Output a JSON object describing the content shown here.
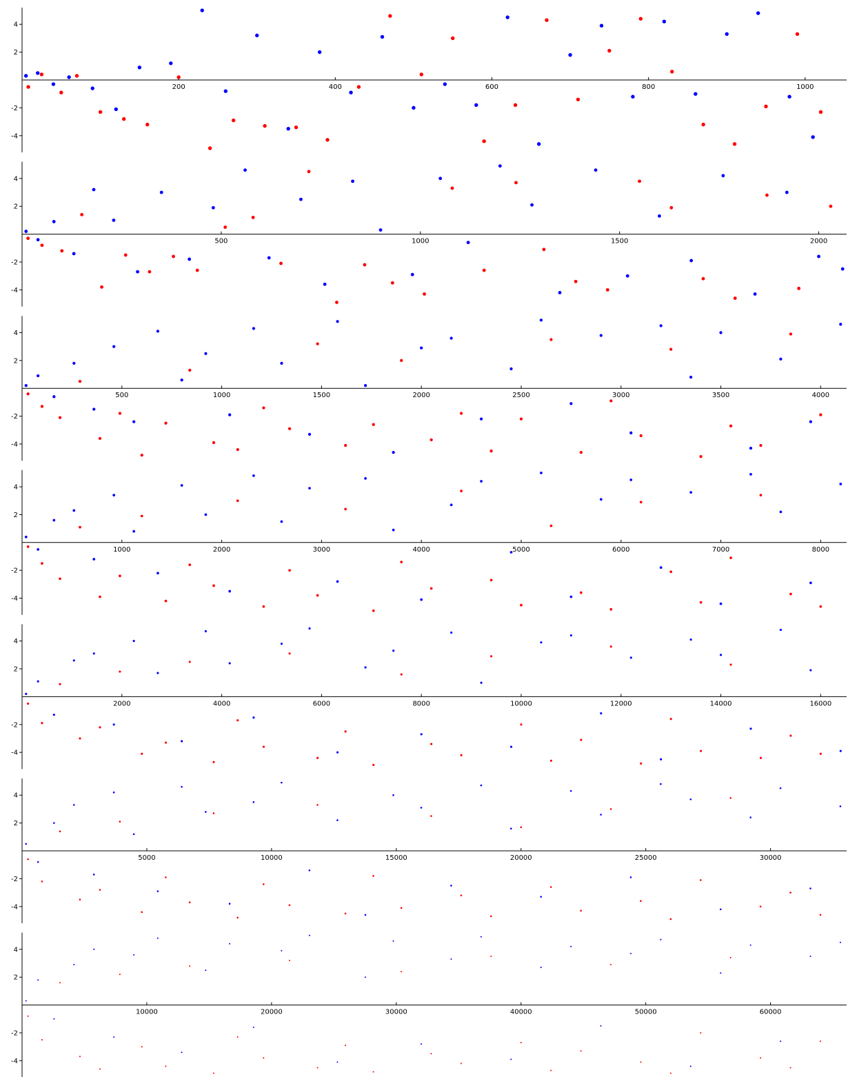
{
  "chart_data": [
    {
      "type": "scatter",
      "xlim": [
        0,
        1053
      ],
      "ylim": [
        -5.2,
        5.2
      ],
      "xticks": [
        200,
        400,
        600,
        800,
        1000
      ],
      "yticks": [
        -4,
        -2,
        2,
        4
      ],
      "series": [
        {
          "color": "#0000ff",
          "x": [
            5,
            20,
            40,
            60,
            90,
            120,
            150,
            190,
            230,
            260,
            300,
            340,
            380,
            420,
            460,
            500,
            540,
            580,
            620,
            660,
            700,
            740,
            780,
            820,
            860,
            900,
            940,
            980,
            1010
          ],
          "values": [
            0.3,
            0.5,
            -0.3,
            0.2,
            -0.6,
            -2.1,
            0.9,
            1.2,
            5.0,
            -0.8,
            3.2,
            -3.5,
            2.0,
            -0.9,
            3.1,
            -2.0,
            -0.3,
            -1.8,
            4.5,
            -4.6,
            1.8,
            3.9,
            -1.2,
            4.2,
            -1.0,
            3.3,
            4.8,
            -1.2,
            -4.1
          ]
        },
        {
          "color": "#ff0000",
          "x": [
            8,
            25,
            50,
            70,
            100,
            130,
            160,
            200,
            240,
            270,
            310,
            350,
            390,
            430,
            470,
            510,
            550,
            590,
            630,
            670,
            710,
            750,
            790,
            830,
            870,
            910,
            950,
            990,
            1020
          ],
          "values": [
            -0.5,
            0.4,
            -0.9,
            0.3,
            -2.3,
            -2.8,
            -3.2,
            0.2,
            -4.9,
            -2.9,
            -3.3,
            -3.4,
            -4.3,
            -0.5,
            4.6,
            0.4,
            3.0,
            -4.4,
            -1.8,
            4.3,
            -1.4,
            2.1,
            4.4,
            0.6,
            -3.2,
            -4.6,
            -1.9,
            3.3,
            -2.3
          ]
        }
      ]
    },
    {
      "type": "scatter",
      "xlim": [
        0,
        2070
      ],
      "ylim": [
        -5.2,
        5.2
      ],
      "xticks": [
        500,
        1000,
        1500,
        2000
      ],
      "yticks": [
        -4,
        -2,
        2,
        4
      ],
      "series": [
        {
          "color": "#0000ff",
          "x": [
            10,
            40,
            80,
            130,
            180,
            230,
            290,
            350,
            420,
            480,
            560,
            620,
            700,
            760,
            830,
            900,
            980,
            1050,
            1120,
            1200,
            1280,
            1350,
            1440,
            1520,
            1600,
            1680,
            1760,
            1840,
            1920,
            2000,
            2060
          ],
          "values": [
            0.2,
            -0.4,
            0.9,
            -1.4,
            3.2,
            1.0,
            -2.7,
            3.0,
            -1.8,
            1.9,
            4.6,
            -1.7,
            2.5,
            -3.6,
            3.8,
            0.3,
            -2.9,
            4.0,
            -0.6,
            4.9,
            2.1,
            -4.2,
            4.6,
            -3.0,
            1.3,
            -1.9,
            4.2,
            -4.3,
            3.0,
            -1.6,
            -2.5
          ]
        },
        {
          "color": "#ff0000",
          "x": [
            15,
            50,
            100,
            150,
            200,
            260,
            320,
            380,
            440,
            510,
            580,
            650,
            720,
            790,
            860,
            930,
            1010,
            1080,
            1160,
            1240,
            1310,
            1390,
            1470,
            1550,
            1630,
            1710,
            1790,
            1870,
            1950,
            2030
          ],
          "values": [
            -0.3,
            -0.8,
            -1.2,
            1.4,
            -3.8,
            -1.5,
            -2.7,
            -1.6,
            -2.6,
            0.5,
            1.2,
            -2.1,
            4.5,
            -4.9,
            -2.2,
            -3.5,
            -4.3,
            3.3,
            -2.6,
            3.7,
            -1.1,
            -3.4,
            -4.0,
            3.8,
            1.9,
            -3.2,
            -4.6,
            2.8,
            -3.9,
            2.0
          ]
        }
      ]
    },
    {
      "type": "scatter",
      "xlim": [
        0,
        4130
      ],
      "ylim": [
        -5.2,
        5.2
      ],
      "xticks": [
        500,
        1000,
        1500,
        2000,
        2500,
        3000,
        3500,
        4000
      ],
      "yticks": [
        -4,
        -2,
        2,
        4
      ],
      "series": [
        {
          "color": "#0000ff",
          "x": [
            20,
            80,
            160,
            260,
            360,
            460,
            560,
            680,
            800,
            920,
            1040,
            1160,
            1300,
            1440,
            1580,
            1720,
            1860,
            2000,
            2150,
            2300,
            2450,
            2600,
            2750,
            2900,
            3050,
            3200,
            3350,
            3500,
            3650,
            3800,
            3950,
            4100
          ],
          "values": [
            0.2,
            0.9,
            -0.6,
            1.8,
            -1.5,
            3.0,
            -2.4,
            4.1,
            0.6,
            2.5,
            -1.9,
            4.3,
            1.8,
            -3.3,
            4.8,
            0.2,
            -4.6,
            2.9,
            3.6,
            -2.2,
            1.4,
            4.9,
            -1.1,
            3.8,
            -3.2,
            4.5,
            0.8,
            4.0,
            -4.3,
            2.1,
            -2.4,
            4.6
          ]
        },
        {
          "color": "#ff0000",
          "x": [
            30,
            100,
            190,
            290,
            390,
            490,
            600,
            720,
            840,
            960,
            1080,
            1210,
            1340,
            1480,
            1620,
            1760,
            1900,
            2050,
            2200,
            2350,
            2500,
            2650,
            2800,
            2950,
            3100,
            3250,
            3400,
            3550,
            3700,
            3850,
            4000
          ],
          "values": [
            -0.4,
            -1.3,
            -2.1,
            0.5,
            -3.6,
            -1.8,
            -4.8,
            -2.5,
            1.3,
            -3.9,
            -4.4,
            -1.4,
            -2.9,
            3.2,
            -4.1,
            -2.6,
            2.0,
            -3.7,
            -1.8,
            -4.5,
            -2.2,
            3.5,
            -4.6,
            -0.9,
            -3.4,
            2.8,
            -4.9,
            -2.7,
            -4.1,
            3.9,
            -1.9
          ]
        }
      ]
    },
    {
      "type": "scatter",
      "xlim": [
        0,
        8260
      ],
      "ylim": [
        -5.2,
        5.2
      ],
      "xticks": [
        1000,
        2000,
        3000,
        4000,
        5000,
        6000,
        7000,
        8000
      ],
      "yticks": [
        -4,
        -2,
        2,
        4
      ],
      "series": [
        {
          "color": "#0000ff",
          "x": [
            40,
            160,
            320,
            520,
            720,
            920,
            1120,
            1360,
            1600,
            1840,
            2080,
            2320,
            2600,
            2880,
            3160,
            3440,
            3720,
            4000,
            4300,
            4600,
            4900,
            5200,
            5500,
            5800,
            6100,
            6400,
            6700,
            7000,
            7300,
            7600,
            7900,
            8200
          ],
          "values": [
            0.4,
            -0.5,
            1.6,
            2.3,
            -1.2,
            3.4,
            0.8,
            -2.2,
            4.1,
            2.0,
            -3.5,
            4.8,
            1.5,
            3.9,
            -2.8,
            4.6,
            0.9,
            -4.1,
            2.7,
            4.4,
            -0.7,
            5.0,
            -3.9,
            3.1,
            4.5,
            -1.8,
            3.6,
            -4.4,
            4.9,
            2.2,
            -2.9,
            4.2
          ]
        },
        {
          "color": "#ff0000",
          "x": [
            60,
            200,
            380,
            580,
            780,
            980,
            1200,
            1440,
            1680,
            1920,
            2160,
            2420,
            2680,
            2960,
            3240,
            3520,
            3800,
            4100,
            4400,
            4700,
            5000,
            5300,
            5600,
            5900,
            6200,
            6500,
            6800,
            7100,
            7400,
            7700,
            8000
          ],
          "values": [
            -0.3,
            -1.5,
            -2.6,
            1.1,
            -3.9,
            -2.4,
            1.9,
            -4.2,
            -1.6,
            -3.1,
            3.0,
            -4.6,
            -2.0,
            -3.8,
            2.4,
            -4.9,
            -1.4,
            -3.3,
            3.7,
            -2.7,
            -4.5,
            1.2,
            -3.6,
            -4.8,
            2.9,
            -2.1,
            -4.3,
            -1.1,
            3.4,
            -3.7,
            -4.6
          ]
        }
      ]
    },
    {
      "type": "scatter",
      "xlim": [
        0,
        16520
      ],
      "ylim": [
        -5.2,
        5.2
      ],
      "xticks": [
        2000,
        4000,
        6000,
        8000,
        10000,
        12000,
        14000,
        16000
      ],
      "yticks": [
        -4,
        -2,
        2,
        4
      ],
      "series": [
        {
          "color": "#0000ff",
          "x": [
            80,
            320,
            640,
            1040,
            1440,
            1840,
            2240,
            2720,
            3200,
            3680,
            4160,
            4640,
            5200,
            5760,
            6320,
            6880,
            7440,
            8000,
            8600,
            9200,
            9800,
            10400,
            11000,
            11600,
            12200,
            12800,
            13400,
            14000,
            14600,
            15200,
            15800,
            16400
          ],
          "values": [
            0.2,
            1.1,
            -1.3,
            2.6,
            3.1,
            -2.0,
            4.0,
            1.7,
            -3.2,
            4.7,
            2.4,
            -1.5,
            3.8,
            4.9,
            -4.0,
            2.1,
            3.3,
            -2.7,
            4.6,
            1.0,
            -3.6,
            3.9,
            4.4,
            -1.2,
            2.8,
            -4.5,
            4.1,
            3.0,
            -2.3,
            4.8,
            1.9,
            -3.9
          ]
        },
        {
          "color": "#ff0000",
          "x": [
            120,
            400,
            760,
            1160,
            1560,
            1960,
            2400,
            2880,
            3360,
            3840,
            4320,
            4840,
            5360,
            5920,
            6480,
            7040,
            7600,
            8200,
            8800,
            9400,
            10000,
            10600,
            11200,
            11800,
            12400,
            13000,
            13600,
            14200,
            14800,
            15400,
            16000
          ],
          "values": [
            -0.5,
            -1.9,
            0.9,
            -3.0,
            -2.2,
            1.8,
            -4.1,
            -3.3,
            2.5,
            -4.7,
            -1.7,
            -3.6,
            3.1,
            -4.4,
            -2.5,
            -4.9,
            1.6,
            -3.4,
            -4.2,
            2.9,
            -2.0,
            -4.6,
            -3.1,
            3.6,
            -4.8,
            -1.6,
            -3.9,
            2.3,
            -4.4,
            -2.8,
            -4.1
          ]
        }
      ]
    },
    {
      "type": "scatter",
      "xlim": [
        0,
        33050
      ],
      "ylim": [
        -5.2,
        5.2
      ],
      "xticks": [
        5000,
        10000,
        15000,
        20000,
        25000,
        30000
      ],
      "yticks": [
        -4,
        -2,
        2,
        4
      ],
      "series": [
        {
          "color": "#0000ff",
          "x": [
            160,
            640,
            1280,
            2080,
            2880,
            3680,
            4480,
            5440,
            6400,
            7360,
            8320,
            9280,
            10400,
            11520,
            12640,
            13760,
            14880,
            16000,
            17200,
            18400,
            19600,
            20800,
            22000,
            23200,
            24400,
            25600,
            26800,
            28000,
            29200,
            30400,
            31600,
            32800
          ],
          "values": [
            0.5,
            -0.8,
            2.0,
            3.3,
            -1.7,
            4.2,
            1.2,
            -2.9,
            4.6,
            2.8,
            -3.8,
            3.5,
            4.9,
            -1.4,
            2.2,
            -4.6,
            4.0,
            3.1,
            -2.5,
            4.7,
            1.6,
            -3.3,
            4.3,
            2.6,
            -1.9,
            4.8,
            3.7,
            -4.2,
            2.4,
            4.5,
            -2.7,
            3.2
          ]
        },
        {
          "color": "#ff0000",
          "x": [
            240,
            800,
            1520,
            2320,
            3120,
            3920,
            4800,
            5760,
            6720,
            7680,
            8640,
            9680,
            10720,
            11840,
            12960,
            14080,
            15200,
            16400,
            17600,
            18800,
            20000,
            21200,
            22400,
            23600,
            24800,
            26000,
            27200,
            28400,
            29600,
            30800,
            32000
          ],
          "values": [
            -0.6,
            -2.2,
            1.4,
            -3.5,
            -2.8,
            2.1,
            -4.4,
            -1.9,
            -3.7,
            2.7,
            -4.8,
            -2.4,
            -3.9,
            3.3,
            -4.5,
            -1.8,
            -4.1,
            2.5,
            -3.2,
            -4.7,
            1.7,
            -2.6,
            -4.3,
            3.0,
            -3.6,
            -4.9,
            -2.1,
            3.8,
            -4.0,
            -3.0,
            -4.6
          ]
        }
      ]
    },
    {
      "type": "scatter",
      "xlim": [
        0,
        66100
      ],
      "ylim": [
        -5.2,
        5.2
      ],
      "xticks": [
        10000,
        20000,
        30000,
        40000,
        50000,
        60000
      ],
      "yticks": [
        -4,
        -2,
        2,
        4
      ],
      "series": [
        {
          "color": "#0000ff",
          "x": [
            320,
            1280,
            2560,
            4160,
            5760,
            7360,
            8960,
            10880,
            12800,
            14720,
            16640,
            18560,
            20800,
            23040,
            25280,
            27520,
            29760,
            32000,
            34400,
            36800,
            39200,
            41600,
            44000,
            46400,
            48800,
            51200,
            53600,
            56000,
            58400,
            60800,
            63200,
            65600
          ],
          "values": [
            0.3,
            1.8,
            -1.0,
            2.9,
            4.0,
            -2.3,
            3.6,
            4.8,
            -3.4,
            2.5,
            4.4,
            -1.6,
            3.9,
            5.0,
            -4.1,
            2.0,
            4.6,
            -2.8,
            3.3,
            4.9,
            -3.9,
            2.7,
            4.2,
            -1.5,
            3.7,
            4.7,
            -4.4,
            2.3,
            4.3,
            -2.6,
            3.5,
            4.5
          ]
        },
        {
          "color": "#ff0000",
          "x": [
            480,
            1600,
            3040,
            4640,
            6240,
            7840,
            9600,
            11520,
            13440,
            15360,
            17280,
            19360,
            21440,
            23680,
            25920,
            28160,
            30400,
            32800,
            35200,
            37600,
            40000,
            42400,
            44800,
            47200,
            49600,
            52000,
            54400,
            56800,
            59200,
            61600,
            64000
          ],
          "values": [
            -0.8,
            -2.5,
            1.6,
            -3.7,
            -4.6,
            2.2,
            -3.0,
            -4.4,
            2.8,
            -4.9,
            -2.3,
            -3.8,
            3.2,
            -4.5,
            -2.9,
            -4.8,
            2.4,
            -3.5,
            -4.2,
            3.5,
            -2.7,
            -4.7,
            -3.3,
            2.9,
            -4.1,
            -4.9,
            -2.0,
            3.4,
            -3.8,
            -4.5,
            -2.6
          ]
        }
      ]
    }
  ]
}
